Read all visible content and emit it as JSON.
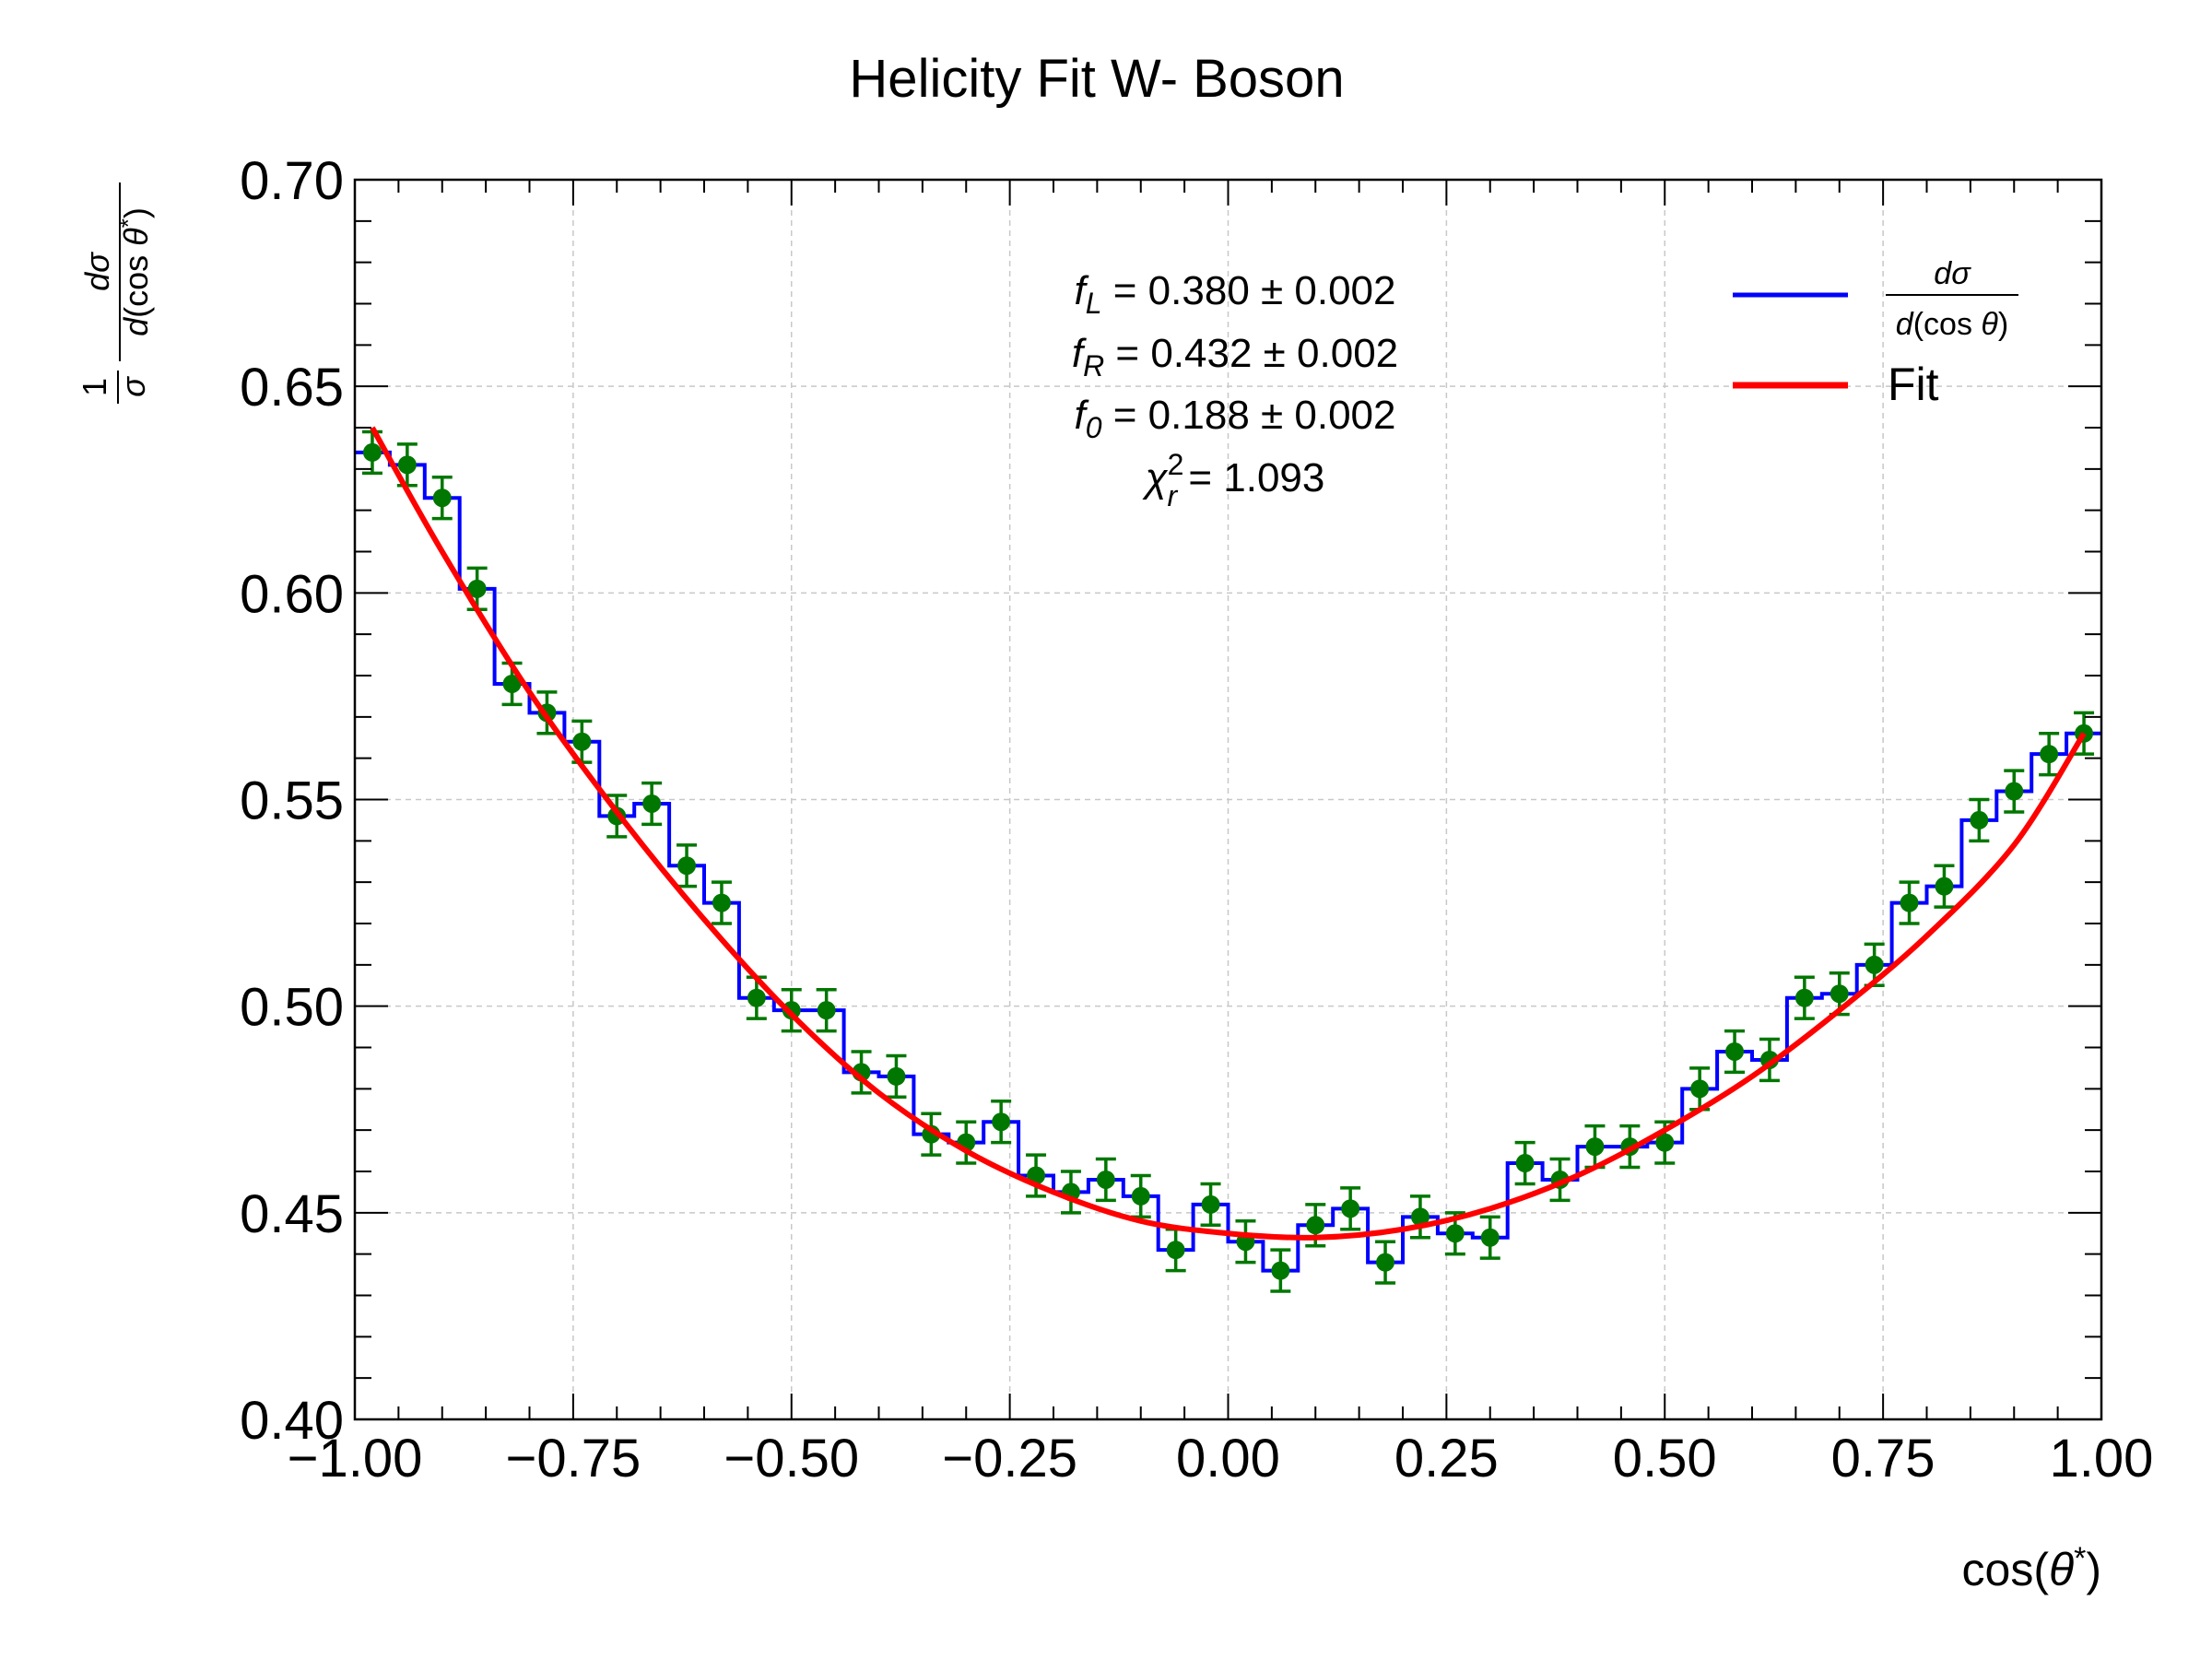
{
  "chart_data": {
    "type": "line",
    "title": "Helicity Fit W- Boson",
    "xlabel": "cos(θ*)",
    "ylabel": "1/σ dσ/d(cos θ*)",
    "xlim": [
      -1.0,
      1.0
    ],
    "ylim": [
      0.4,
      0.7
    ],
    "x_ticks": [
      "−1.00",
      "−0.75",
      "−0.50",
      "−0.25",
      "0.00",
      "0.25",
      "0.50",
      "0.75",
      "1.00"
    ],
    "y_ticks": [
      "0.40",
      "0.45",
      "0.50",
      "0.55",
      "0.60",
      "0.65",
      "0.70"
    ],
    "grid": true,
    "legend_position": "top-right",
    "legend": [
      {
        "label": "dσ/d(cos θ)",
        "color": "#0000ff"
      },
      {
        "label": "Fit",
        "color": "#ff0000"
      }
    ],
    "annotations": {
      "fL": {
        "sym": "f",
        "sub": "L",
        "text": " = 0.380 ± 0.002"
      },
      "fR": {
        "sym": "f",
        "sub": "R",
        "text": " = 0.432 ± 0.002"
      },
      "f0": {
        "sym": "f",
        "sub": "0",
        "text": " = 0.188 ± 0.002"
      },
      "chi2": {
        "sym": "χ",
        "sup": "2",
        "sub": "r",
        "text": " = 1.093"
      }
    },
    "colors": {
      "histogram": "#0000ff",
      "fit": "#ff0000",
      "points": "#007700"
    },
    "bin_width": 0.04,
    "series": [
      {
        "name": "dσ/d(cos θ)",
        "x": [
          -0.98,
          -0.94,
          -0.9,
          -0.86,
          -0.82,
          -0.78,
          -0.74,
          -0.7,
          -0.66,
          -0.62,
          -0.58,
          -0.54,
          -0.5,
          -0.46,
          -0.42,
          -0.38,
          -0.34,
          -0.3,
          -0.26,
          -0.22,
          -0.18,
          -0.14,
          -0.1,
          -0.06,
          -0.02,
          0.02,
          0.06,
          0.1,
          0.14,
          0.18,
          0.22,
          0.26,
          0.3,
          0.34,
          0.38,
          0.42,
          0.46,
          0.5,
          0.54,
          0.58,
          0.62,
          0.66,
          0.7,
          0.74,
          0.78,
          0.82,
          0.86,
          0.9,
          0.94,
          0.98
        ],
        "values": [
          0.634,
          0.631,
          0.623,
          0.601,
          0.578,
          0.571,
          0.564,
          0.546,
          0.549,
          0.534,
          0.525,
          0.502,
          0.499,
          0.499,
          0.484,
          0.483,
          0.469,
          0.467,
          0.472,
          0.459,
          0.455,
          0.458,
          0.454,
          0.441,
          0.452,
          0.443,
          0.436,
          0.447,
          0.451,
          0.438,
          0.449,
          0.445,
          0.444,
          0.462,
          0.458,
          0.466,
          0.466,
          0.467,
          0.48,
          0.489,
          0.487,
          0.502,
          0.503,
          0.51,
          0.525,
          0.529,
          0.545,
          0.552,
          0.561,
          0.566
        ],
        "errors": 0.005
      },
      {
        "name": "Fit",
        "x": [
          -0.98,
          -0.9,
          -0.8,
          -0.7,
          -0.6,
          -0.5,
          -0.4,
          -0.3,
          -0.2,
          -0.1,
          0.0,
          0.1,
          0.2,
          0.3,
          0.4,
          0.5,
          0.6,
          0.7,
          0.8,
          0.9,
          0.98
        ],
        "values": [
          0.64,
          0.61,
          0.576,
          0.547,
          0.521,
          0.498,
          0.479,
          0.465,
          0.455,
          0.448,
          0.445,
          0.444,
          0.446,
          0.451,
          0.459,
          0.47,
          0.483,
          0.499,
          0.517,
          0.539,
          0.566
        ]
      }
    ]
  }
}
